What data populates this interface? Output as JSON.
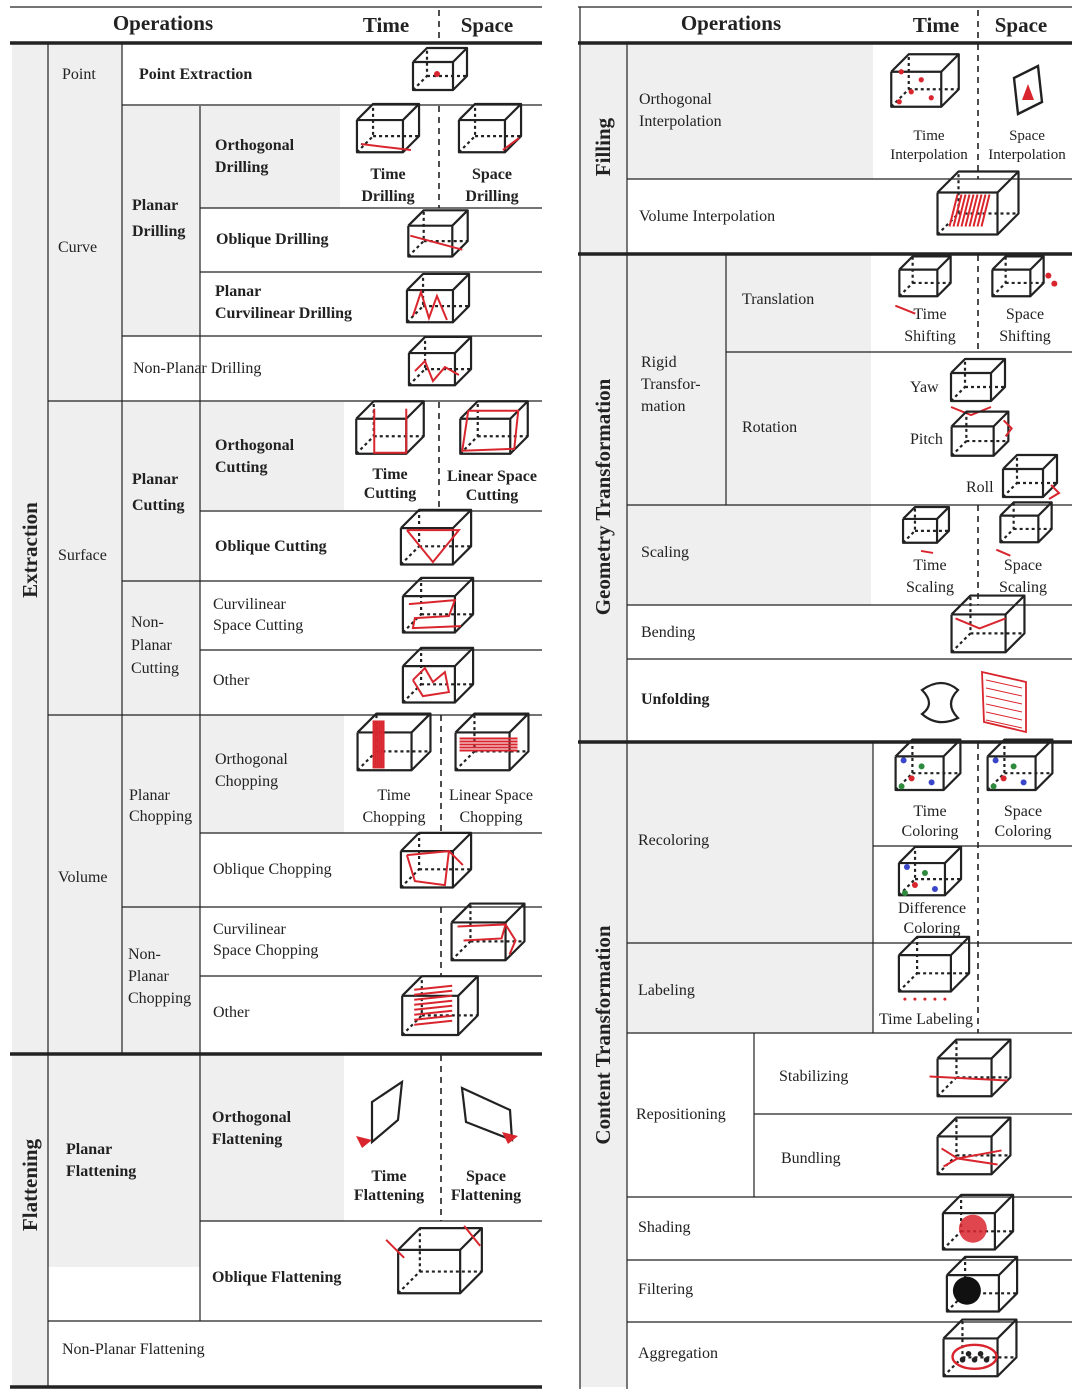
{
  "left": {
    "header": {
      "operations": "Operations",
      "time": "Time",
      "space": "Space"
    },
    "categories": {
      "extraction": "Extraction",
      "flattening": "Flattening"
    },
    "groups": {
      "point": "Point",
      "curve": "Curve",
      "surface": "Surface",
      "volume": "Volume"
    },
    "point_extraction": "Point Extraction",
    "planar_drilling": "Planar\nDrilling",
    "orthogonal_drilling": "Orthogonal\nDrilling",
    "time_drilling": "Time\nDrilling",
    "space_drilling": "Space\nDrilling",
    "oblique_drilling": "Oblique Drilling",
    "planar_curvilinear_drilling": "Planar\nCurvilinear Drilling",
    "non_planar_drilling": "Non-Planar Drilling",
    "planar_cutting": "Planar\nCutting",
    "orthogonal_cutting": "Orthogonal\nCutting",
    "time_cutting": "Time\nCutting",
    "linear_space_cutting": "Linear Space\nCutting",
    "oblique_cutting": "Oblique Cutting",
    "non_planar_cutting": "Non-\nPlanar\nCutting",
    "curvilinear_space_cutting": "Curvilinear\nSpace Cutting",
    "other_cutting": "Other",
    "planar_chopping": "Planar\nChopping",
    "orthogonal_chopping": "Orthogonal\nChopping",
    "time_chopping": "Time\nChopping",
    "linear_space_chopping": "Linear Space\nChopping",
    "oblique_chopping": "Oblique Chopping",
    "non_planar_chopping": "Non-\nPlanar\nChopping",
    "curvilinear_space_chopping": "Curvilinear\nSpace Chopping",
    "other_chopping": "Other",
    "planar_flattening": "Planar\nFlattening",
    "orthogonal_flattening": "Orthogonal\nFlattening",
    "time_flattening": "Time\nFlattening",
    "space_flattening": "Space\nFlattening",
    "oblique_flattening": "Oblique Flattening",
    "non_planar_flattening": "Non-Planar Flattening"
  },
  "right": {
    "header": {
      "operations": "Operations",
      "time": "Time",
      "space": "Space"
    },
    "categories": {
      "filling": "Filling",
      "geometry": "Geometry Transformation",
      "content": "Content Transformation"
    },
    "orthogonal_interpolation": "Orthogonal\nInterpolation",
    "time_interpolation": "Time\nInterpolation",
    "space_interpolation": "Space\nInterpolation",
    "volume_interpolation": "Volume  Interpolation",
    "rigid_transformation": "Rigid\nTransfor-\nmation",
    "translation": "Translation",
    "time_shifting": "Time\nShifting",
    "space_shifting": "Space\nShifting",
    "rotation": "Rotation",
    "yaw": "Yaw",
    "pitch": "Pitch",
    "roll": "Roll",
    "scaling": "Scaling",
    "time_scaling": "Time\nScaling",
    "space_scaling": "Space\nScaling",
    "bending": "Bending",
    "unfolding": "Unfolding",
    "recoloring": "Recoloring",
    "time_coloring": "Time\nColoring",
    "space_coloring": "Space\nColoring",
    "difference_coloring": "Difference\nColoring",
    "labeling": "Labeling",
    "time_labeling": "Time Labeling",
    "repositioning": "Repositioning",
    "stabilizing": "Stabilizing",
    "bundling": "Bundling",
    "shading": "Shading",
    "filtering": "Filtering",
    "aggregation": "Aggregation"
  },
  "colors": {
    "accent": "#d9262e",
    "gray_fill": "#efefef",
    "line": "#222222"
  }
}
